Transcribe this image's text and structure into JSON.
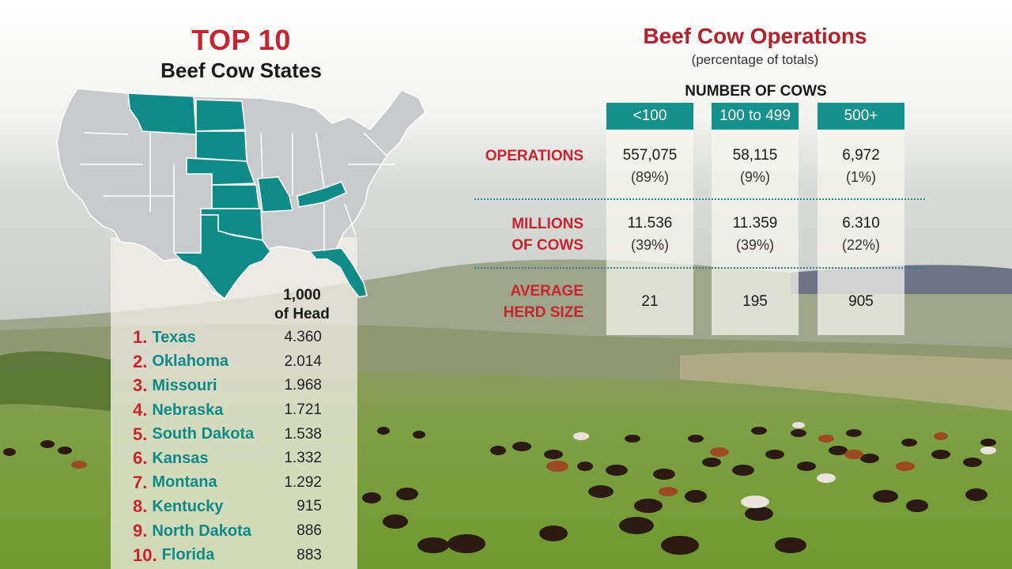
{
  "top10": {
    "title": "TOP 10",
    "subtitle": "Beef Cow States",
    "unit_label_line1": "1,000",
    "unit_label_line2": "of Head",
    "states": [
      {
        "rank": "1.",
        "name": "Texas",
        "value": "4.360"
      },
      {
        "rank": "2.",
        "name": "Oklahoma",
        "value": "2.014"
      },
      {
        "rank": "3.",
        "name": "Missouri",
        "value": "1.968"
      },
      {
        "rank": "4.",
        "name": "Nebraska",
        "value": "1.721"
      },
      {
        "rank": "5.",
        "name": "South Dakota",
        "value": "1.538"
      },
      {
        "rank": "6.",
        "name": "Kansas",
        "value": "1.332"
      },
      {
        "rank": "7.",
        "name": "Montana",
        "value": "1.292"
      },
      {
        "rank": "8.",
        "name": "Kentucky",
        "value": "915"
      },
      {
        "rank": "9.",
        "name": "North Dakota",
        "value": "886"
      },
      {
        "rank": "10.",
        "name": "Florida",
        "value": "883"
      }
    ]
  },
  "operations": {
    "title": "Beef Cow Operations",
    "subtitle": "(percentage of totals)",
    "columns_header": "NUMBER OF COWS",
    "columns": [
      "<100",
      "100 to 499",
      "500+"
    ],
    "row_labels": {
      "operations": "OPERATIONS",
      "millions_line1": "MILLIONS",
      "millions_line2": "OF COWS",
      "herd_line1": "AVERAGE",
      "herd_line2": "HERD SIZE"
    },
    "values": [
      {
        "ops": "557,075",
        "ops_pct": "(89%)",
        "cows": "11.536",
        "cows_pct": "(39%)",
        "herd": "21"
      },
      {
        "ops": "58,115",
        "ops_pct": "(9%)",
        "cows": "11.359",
        "cows_pct": "(39%)",
        "herd": "195"
      },
      {
        "ops": "6,972",
        "ops_pct": "(1%)",
        "cows": "6.310",
        "cows_pct": "(22%)",
        "herd": "905"
      }
    ]
  },
  "colors": {
    "title_red": "#c8242f",
    "teal": "#14918a",
    "state_gray": "#c9cacc",
    "highlight_teal": "#0f8c87"
  }
}
